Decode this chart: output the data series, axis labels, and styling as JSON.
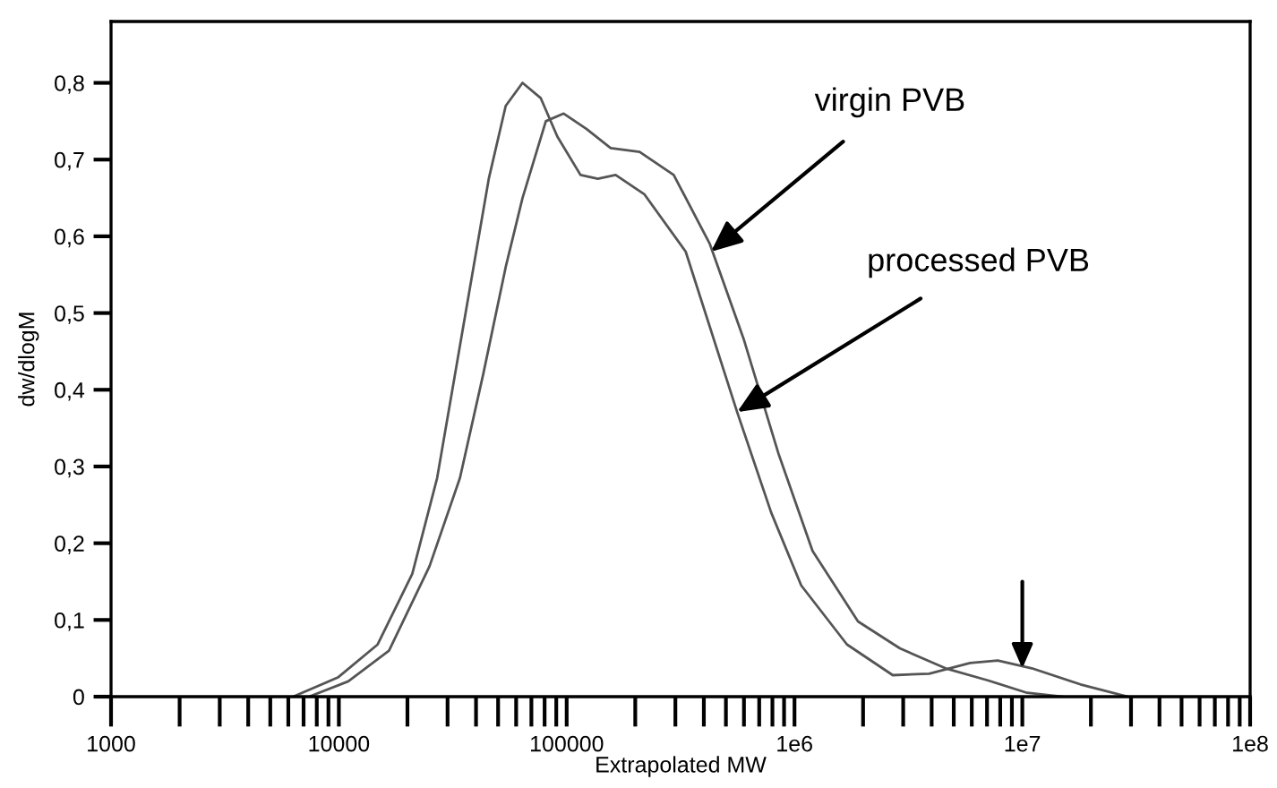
{
  "chart_data": {
    "type": "line",
    "xlabel": "Extrapolated MW",
    "ylabel": "dw/dlogM",
    "log": "x",
    "xlim": [
      1000,
      100000000
    ],
    "ylim": [
      0,
      0.88
    ],
    "xticks": [
      {
        "value": 1000,
        "label": "1000"
      },
      {
        "value": 10000,
        "label": "10000"
      },
      {
        "value": 100000,
        "label": "100000"
      },
      {
        "value": 1000000,
        "label": "1e6"
      },
      {
        "value": 10000000,
        "label": "1e7"
      },
      {
        "value": 100000000,
        "label": "1e8"
      }
    ],
    "yticks": [
      {
        "value": 0,
        "label": "0"
      },
      {
        "value": 0.1,
        "label": "0,1"
      },
      {
        "value": 0.2,
        "label": "0,2"
      },
      {
        "value": 0.3,
        "label": "0,3"
      },
      {
        "value": 0.4,
        "label": "0,4"
      },
      {
        "value": 0.5,
        "label": "0,5"
      },
      {
        "value": 0.6,
        "label": "0,6"
      },
      {
        "value": 0.7,
        "label": "0,7"
      },
      {
        "value": 0.8,
        "label": "0,8"
      }
    ],
    "grid": false,
    "legend": false,
    "marker": "none",
    "line_style": "solid",
    "series": [
      {
        "color": "#555555",
        "x": [
          7400,
          11000,
          16600,
          25000,
          34000,
          43000,
          54000,
          64000,
          81000,
          97000,
          122000,
          156000,
          209000,
          295000,
          425000,
          600000,
          850000,
          1200000,
          1900000,
          2900000,
          4600000,
          7100000,
          10500000,
          15000000
        ],
        "values": [
          0,
          0.02,
          0.06,
          0.17,
          0.285,
          0.42,
          0.56,
          0.65,
          0.75,
          0.76,
          0.74,
          0.715,
          0.71,
          0.68,
          0.59,
          0.465,
          0.317,
          0.19,
          0.098,
          0.063,
          0.037,
          0.021,
          0.005,
          0
        ]
      },
      {
        "color": "#555555",
        "x": [
          6300,
          9900,
          14800,
          21000,
          27000,
          36000,
          45500,
          54000,
          64000,
          77000,
          91000,
          115000,
          137000,
          164000,
          219000,
          333000,
          560000,
          790000,
          1070000,
          1700000,
          2700000,
          3900000,
          5900000,
          7800000,
          11000000,
          18000000,
          29000000
        ],
        "values": [
          0,
          0.025,
          0.068,
          0.16,
          0.285,
          0.5,
          0.675,
          0.77,
          0.8,
          0.78,
          0.73,
          0.68,
          0.675,
          0.68,
          0.655,
          0.58,
          0.371,
          0.24,
          0.145,
          0.068,
          0.028,
          0.03,
          0.044,
          0.047,
          0.037,
          0.016,
          0
        ]
      }
    ],
    "annotations": [
      {
        "text": "virgin PVB",
        "x": 430000,
        "y": 0.58
      },
      {
        "text": "processed PVB",
        "x": 560000,
        "y": 0.371
      }
    ]
  }
}
